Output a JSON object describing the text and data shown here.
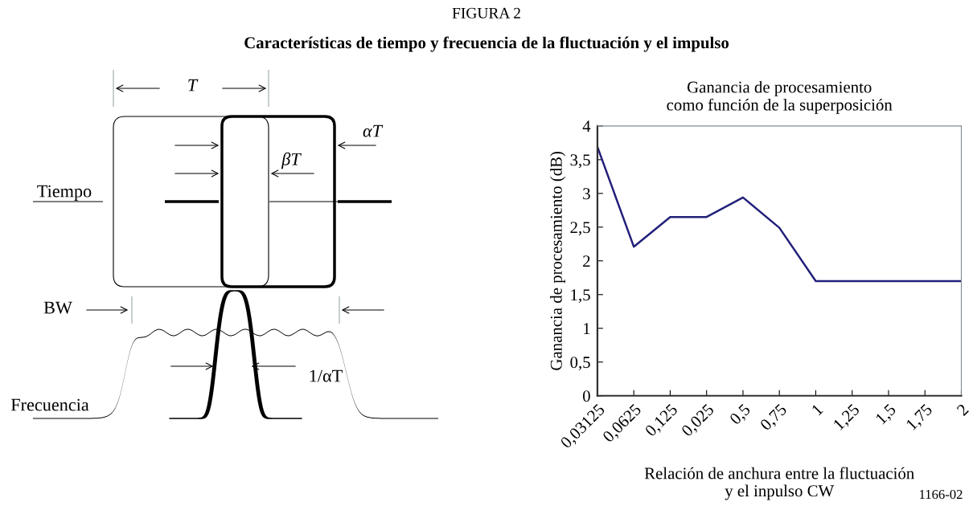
{
  "chart_data": {
    "type": "line",
    "title": "Ganancia de procesamiento\ncomo función de la superposición",
    "xlabel": "Relación de anchura entre la fluctuación\ny el inpulso CW",
    "ylabel": "Ganancia de procesamiento (dB)",
    "categories": [
      "0,03125",
      "0,0625",
      "0,125",
      "0,025",
      "0,5",
      "0,75",
      "1",
      "1,25",
      "1,5",
      "1,75",
      "2"
    ],
    "series": [
      {
        "color": "#23207a",
        "values": [
          3.69,
          2.21,
          2.65,
          2.65,
          2.94,
          2.49,
          1.7,
          1.7,
          1.7,
          1.7,
          1.7
        ]
      }
    ],
    "ylim": [
      0,
      4
    ],
    "yticks": [
      0,
      {
        "value": 0.5,
        "label": "0,5"
      },
      1,
      {
        "value": 1.5,
        "label": "1,5"
      },
      2,
      {
        "value": 2.5,
        "label": "2,5"
      },
      3,
      {
        "value": 3.5,
        "label": "3,5"
      },
      4
    ],
    "grid": false,
    "legend": false,
    "marker": "none",
    "line_style": "solid",
    "annotations": [
      "FIGURA 2",
      "Características de tiempo y frecuencia de la fluctuación y el impulso",
      "T",
      "αT",
      "βT",
      "Tiempo",
      "BW",
      "1/αT",
      "Frecuencia",
      "1166-02"
    ]
  }
}
